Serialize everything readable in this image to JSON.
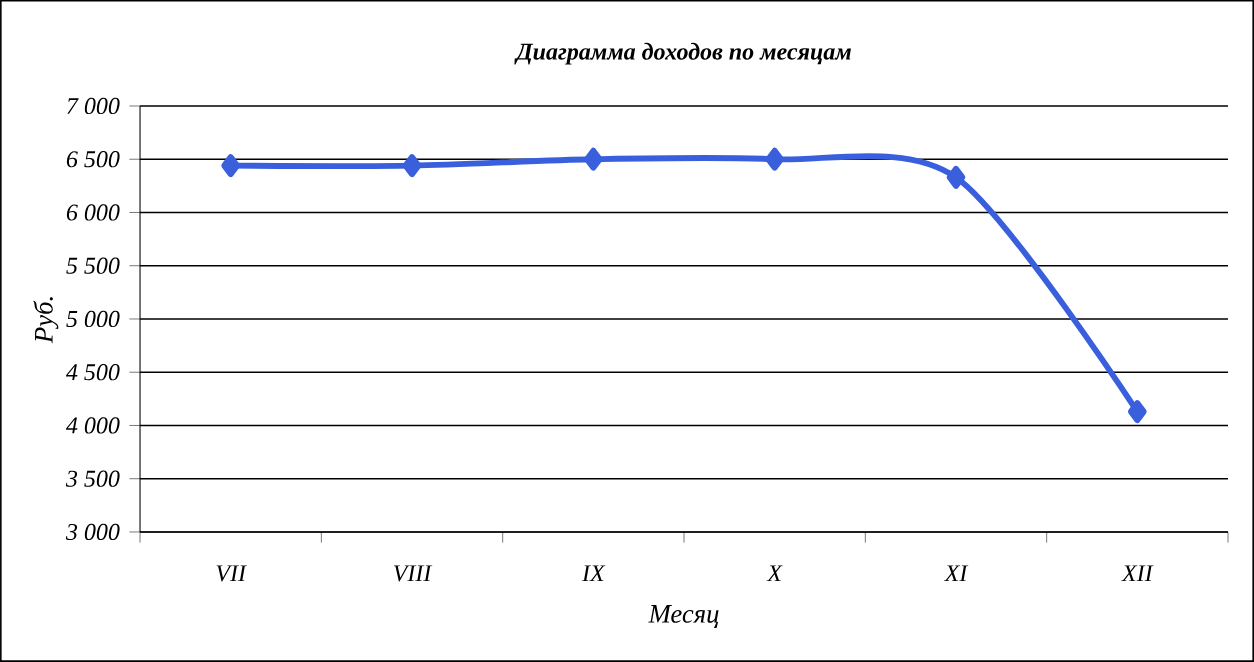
{
  "chart_data": {
    "type": "line",
    "title": "Диаграмма доходов по месяцам",
    "xlabel": "Месяц",
    "ylabel": "Руб.",
    "categories": [
      "VII",
      "VIII",
      "IX",
      "X",
      "XI",
      "XII"
    ],
    "series": [
      {
        "color": "#3a5fdc",
        "values": [
          6440,
          6440,
          6500,
          6500,
          6330,
          4130
        ]
      }
    ],
    "ylim": [
      3000,
      7000
    ],
    "yticks": [
      {
        "value": 3000,
        "label": "3 000"
      },
      {
        "value": 3500,
        "label": "3 500"
      },
      {
        "value": 4000,
        "label": "4 000"
      },
      {
        "value": 4500,
        "label": "4 500"
      },
      {
        "value": 5000,
        "label": "5 000"
      },
      {
        "value": 5500,
        "label": "5 500"
      },
      {
        "value": 6000,
        "label": "6 000"
      },
      {
        "value": 6500,
        "label": "6 500"
      },
      {
        "value": 7000,
        "label": "7 000"
      }
    ],
    "grid": "y",
    "marker": "diamond",
    "line_style": "solid"
  }
}
